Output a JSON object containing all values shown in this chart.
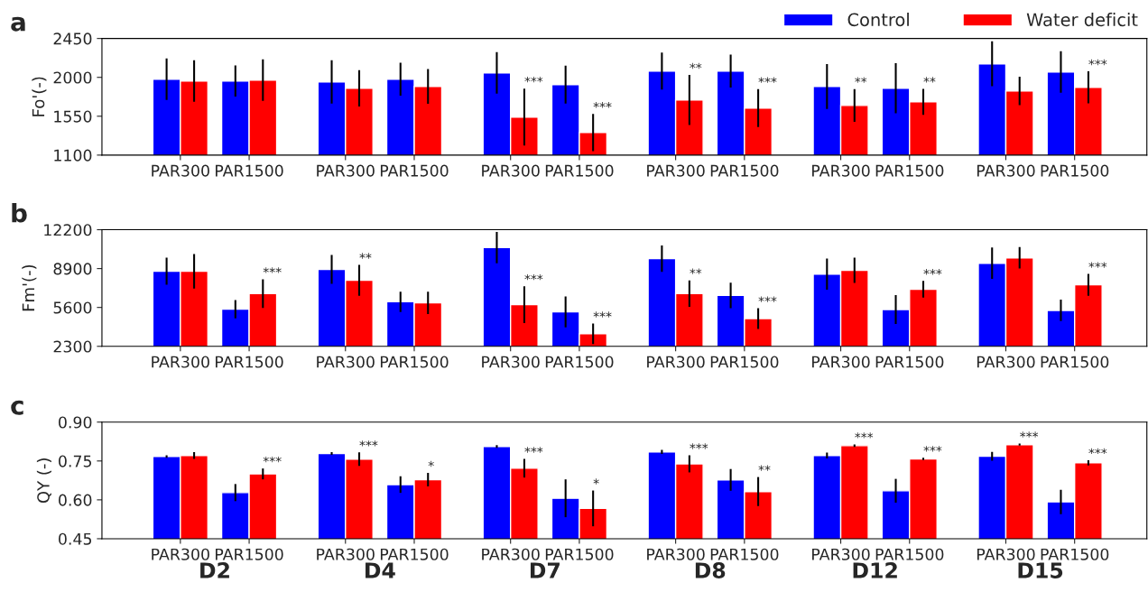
{
  "chart_data": [
    {
      "type": "bar",
      "title": "a",
      "ylabel": "Fo'(-)",
      "categories": [
        "PAR300",
        "PAR1500",
        "PAR300",
        "PAR1500",
        "PAR300",
        "PAR1500",
        "PAR300",
        "PAR1500",
        "PAR300",
        "PAR1500",
        "PAR300",
        "PAR1500"
      ],
      "ylim": [
        1100,
        2450
      ],
      "yticks": [
        1100,
        1550,
        2000,
        2450
      ],
      "legend": "top right",
      "series": [
        {
          "name": "Control",
          "color": "#0000ff",
          "values": [
            1979,
            1958,
            1947,
            1979,
            2052,
            1916,
            2073,
            2073,
            1895,
            1874,
            2157,
            2063
          ],
          "errors": [
            240,
            180,
            250,
            190,
            240,
            220,
            215,
            190,
            260,
            290,
            260,
            240
          ]
        },
        {
          "name": "Water deficit",
          "color": "#ff0000",
          "values": [
            1958,
            1968,
            1874,
            1895,
            1540,
            1361,
            1738,
            1644,
            1675,
            1717,
            1843,
            1885
          ],
          "errors": [
            240,
            240,
            210,
            200,
            330,
            215,
            290,
            220,
            190,
            150,
            165,
            185
          ],
          "value_labels": [
            null,
            null,
            null,
            null,
            "***",
            "***",
            "**",
            "***",
            "**",
            "**",
            null,
            "***"
          ]
        }
      ]
    },
    {
      "type": "bar",
      "title": "b",
      "ylabel": "Fm'(-)",
      "categories": [
        "PAR300",
        "PAR1500",
        "PAR300",
        "PAR1500",
        "PAR300",
        "PAR1500",
        "PAR300",
        "PAR1500",
        "PAR300",
        "PAR1500",
        "PAR300",
        "PAR1500"
      ],
      "ylim": [
        2300,
        12200
      ],
      "yticks": [
        2300,
        5600,
        8900,
        12200
      ],
      "series": [
        {
          "color": "#0000ff",
          "values": [
            8670,
            5450,
            8830,
            6080,
            10680,
            5220,
            9750,
            6620,
            8430,
            5420,
            9350,
            5350
          ],
          "errors": [
            1150,
            780,
            1220,
            860,
            1340,
            1320,
            1120,
            1080,
            1330,
            1220,
            1330,
            910
          ]
        },
        {
          "color": "#ff0000",
          "values": [
            8670,
            6770,
            7900,
            5990,
            5840,
            3360,
            6780,
            4650,
            8750,
            7140,
            9810,
            7520
          ],
          "errors": [
            1470,
            1220,
            1310,
            950,
            1560,
            870,
            1120,
            880,
            1070,
            710,
            910,
            920
          ],
          "value_labels": [
            null,
            "***",
            "**",
            null,
            "***",
            "***",
            "**",
            "***",
            null,
            "***",
            null,
            "***"
          ]
        }
      ]
    },
    {
      "type": "bar",
      "title": "c",
      "ylabel": "QY (-)",
      "categories": [
        "PAR300",
        "PAR1500",
        "PAR300",
        "PAR1500",
        "PAR300",
        "PAR1500",
        "PAR300",
        "PAR1500",
        "PAR300",
        "PAR1500",
        "PAR300",
        "PAR1500"
      ],
      "ylim": [
        0.45,
        0.9
      ],
      "yticks": [
        {
          "value": 0.45,
          "label": "0.45"
        },
        {
          "value": 0.6,
          "label": "0.60"
        },
        {
          "value": 0.75,
          "label": "0.75"
        },
        {
          "value": 0.9,
          "label": "0.90"
        }
      ],
      "annotations": [
        "D2",
        "D4",
        "D7",
        "D8",
        "D12",
        "D15"
      ],
      "series": [
        {
          "color": "#0000ff",
          "values": [
            0.767,
            0.628,
            0.779,
            0.659,
            0.806,
            0.606,
            0.785,
            0.677,
            0.771,
            0.635,
            0.768,
            0.592
          ],
          "errors": [
            0.005,
            0.033,
            0.005,
            0.032,
            0.005,
            0.073,
            0.008,
            0.042,
            0.011,
            0.046,
            0.017,
            0.047
          ]
        },
        {
          "color": "#ff0000",
          "values": [
            0.771,
            0.7,
            0.757,
            0.678,
            0.722,
            0.567,
            0.739,
            0.632,
            0.809,
            0.758,
            0.813,
            0.743
          ],
          "errors": [
            0.013,
            0.021,
            0.026,
            0.026,
            0.036,
            0.069,
            0.033,
            0.056,
            0.005,
            0.004,
            0.004,
            0.01
          ],
          "value_labels": [
            null,
            "***",
            "***",
            "*",
            "***",
            "*",
            "***",
            "**",
            "***",
            "***",
            "***",
            "***"
          ]
        }
      ]
    }
  ]
}
